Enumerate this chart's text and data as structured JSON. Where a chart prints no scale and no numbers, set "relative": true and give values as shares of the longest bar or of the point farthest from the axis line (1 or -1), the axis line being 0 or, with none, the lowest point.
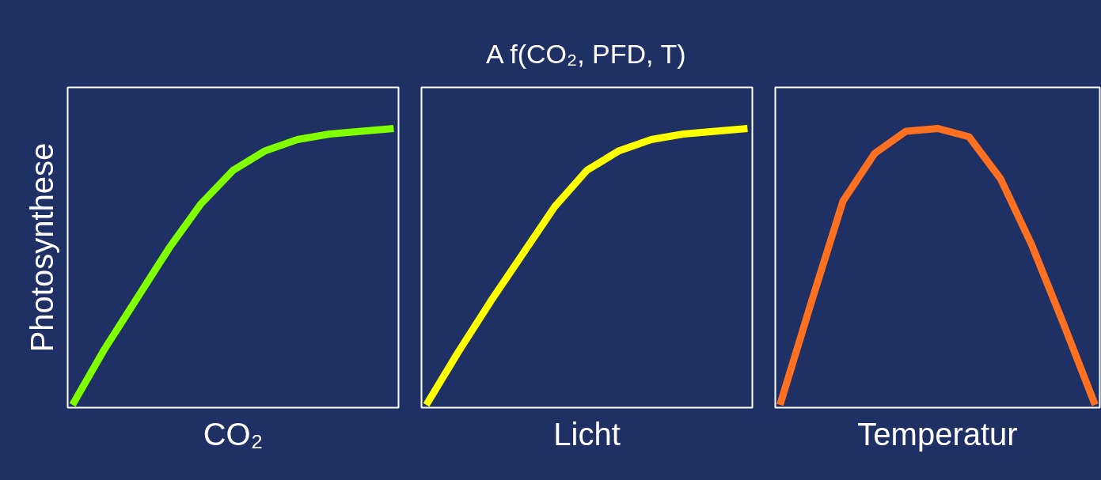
{
  "chart_data": [
    {
      "type": "line",
      "relative": true,
      "ylabel": "Photosynthese",
      "xlabel": "CO₂",
      "categories": [
        null,
        null,
        null,
        null,
        null,
        null,
        null,
        null,
        null,
        null,
        null
      ],
      "grid": false,
      "series": [
        {
          "color": "#80ff00",
          "values": [
            0.01,
            0.21,
            0.39,
            0.57,
            0.73,
            0.85,
            0.92,
            0.96,
            0.98,
            0.99,
            1.0
          ]
        }
      ]
    },
    {
      "type": "line",
      "relative": true,
      "title": "A f(CO₂, PFD, T)",
      "xlabel": "Licht",
      "categories": [
        null,
        null,
        null,
        null,
        null,
        null,
        null,
        null,
        null,
        null,
        null
      ],
      "grid": false,
      "series": [
        {
          "color": "#ffff00",
          "values": [
            0.01,
            0.2,
            0.38,
            0.55,
            0.72,
            0.85,
            0.92,
            0.96,
            0.98,
            0.99,
            1.0
          ]
        }
      ]
    },
    {
      "type": "line",
      "relative": true,
      "xlabel": "Temperatur",
      "categories": [
        null,
        null,
        null,
        null,
        null,
        null,
        null,
        null,
        null,
        null,
        null
      ],
      "grid": false,
      "series": [
        {
          "color": "#ff7020",
          "values": [
            0.01,
            0.38,
            0.74,
            0.91,
            0.99,
            1.0,
            0.97,
            0.82,
            0.58,
            0.3,
            0.01
          ]
        }
      ]
    }
  ]
}
